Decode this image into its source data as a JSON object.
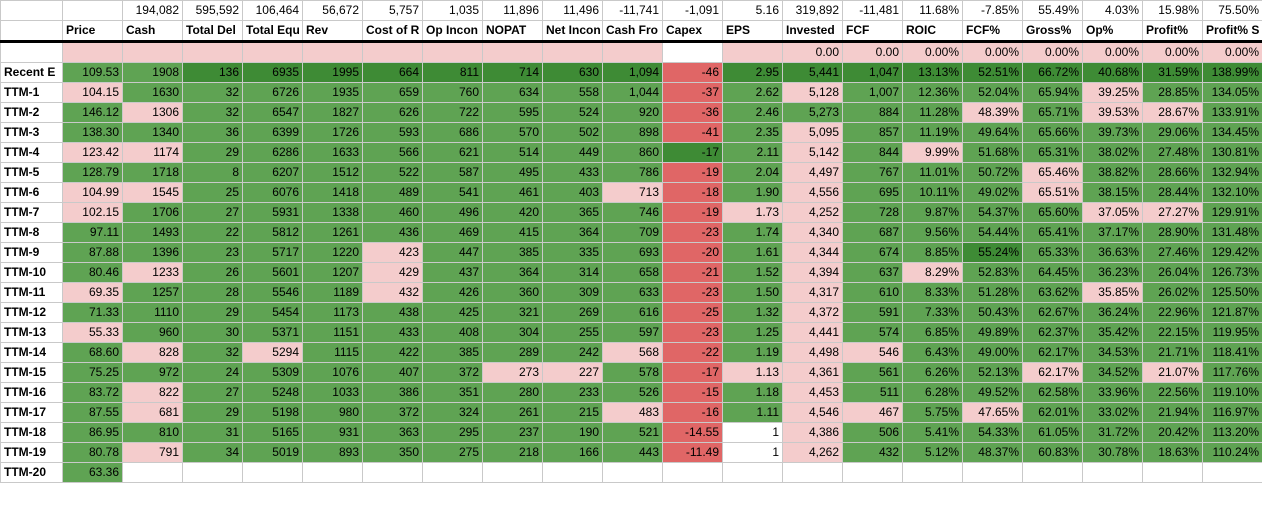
{
  "top_row": [
    "",
    "",
    "194,082",
    "595,592",
    "106,464",
    "56,672",
    "5,757",
    "1,035",
    "11,896",
    "11,496",
    "-11,741",
    "-1,091",
    "5.16",
    "319,892",
    "-11,481",
    "11.68%",
    "-7.85%",
    "55.49%",
    "4.03%",
    "15.98%",
    "75.50%"
  ],
  "headers": [
    "",
    "Price",
    "Cash",
    "Total Del",
    "Total Equ",
    "Rev",
    "Cost of R",
    "Op Incon",
    "NOPAT",
    "Net Incon",
    "Cash Fro",
    "Capex",
    "EPS",
    "Invested",
    "FCF",
    "ROIC",
    "FCF%",
    "Gross%",
    "Op%",
    "Profit%",
    "Profit% S"
  ],
  "pink_row": [
    "",
    "",
    "",
    "",
    "",
    "",
    "",
    "",
    "",
    "",
    "",
    "",
    "",
    "0.00",
    "0.00",
    "0.00%",
    "0.00%",
    "0.00%",
    "0.00%",
    "0.00%",
    "0.00%"
  ],
  "rows": [
    {
      "label": "Recent E",
      "cells": [
        "109.53",
        "1908",
        "136",
        "6935",
        "1995",
        "664",
        "811",
        "714",
        "630",
        "1,094",
        "-46",
        "2.95",
        "5,441",
        "1,047",
        "13.13%",
        "52.51%",
        "66.72%",
        "40.68%",
        "31.59%",
        "138.99%"
      ]
    },
    {
      "label": "TTM-1",
      "cells": [
        "104.15",
        "1630",
        "32",
        "6726",
        "1935",
        "659",
        "760",
        "634",
        "558",
        "1,044",
        "-37",
        "2.62",
        "5,128",
        "1,007",
        "12.36%",
        "52.04%",
        "65.94%",
        "39.25%",
        "28.85%",
        "134.05%"
      ]
    },
    {
      "label": "TTM-2",
      "cells": [
        "146.12",
        "1306",
        "32",
        "6547",
        "1827",
        "626",
        "722",
        "595",
        "524",
        "920",
        "-36",
        "2.46",
        "5,273",
        "884",
        "11.28%",
        "48.39%",
        "65.71%",
        "39.53%",
        "28.67%",
        "133.91%"
      ]
    },
    {
      "label": "TTM-3",
      "cells": [
        "138.30",
        "1340",
        "36",
        "6399",
        "1726",
        "593",
        "686",
        "570",
        "502",
        "898",
        "-41",
        "2.35",
        "5,095",
        "857",
        "11.19%",
        "49.64%",
        "65.66%",
        "39.73%",
        "29.06%",
        "134.45%"
      ]
    },
    {
      "label": "TTM-4",
      "cells": [
        "123.42",
        "1174",
        "29",
        "6286",
        "1633",
        "566",
        "621",
        "514",
        "449",
        "860",
        "-17",
        "2.11",
        "5,142",
        "844",
        "9.99%",
        "51.68%",
        "65.31%",
        "38.02%",
        "27.48%",
        "130.81%"
      ]
    },
    {
      "label": "TTM-5",
      "cells": [
        "128.79",
        "1718",
        "8",
        "6207",
        "1512",
        "522",
        "587",
        "495",
        "433",
        "786",
        "-19",
        "2.04",
        "4,497",
        "767",
        "11.01%",
        "50.72%",
        "65.46%",
        "38.82%",
        "28.66%",
        "132.94%"
      ]
    },
    {
      "label": "TTM-6",
      "cells": [
        "104.99",
        "1545",
        "25",
        "6076",
        "1418",
        "489",
        "541",
        "461",
        "403",
        "713",
        "-18",
        "1.90",
        "4,556",
        "695",
        "10.11%",
        "49.02%",
        "65.51%",
        "38.15%",
        "28.44%",
        "132.10%"
      ]
    },
    {
      "label": "TTM-7",
      "cells": [
        "102.15",
        "1706",
        "27",
        "5931",
        "1338",
        "460",
        "496",
        "420",
        "365",
        "746",
        "-19",
        "1.73",
        "4,252",
        "728",
        "9.87%",
        "54.37%",
        "65.60%",
        "37.05%",
        "27.27%",
        "129.91%"
      ]
    },
    {
      "label": "TTM-8",
      "cells": [
        "97.11",
        "1493",
        "22",
        "5812",
        "1261",
        "436",
        "469",
        "415",
        "364",
        "709",
        "-23",
        "1.74",
        "4,340",
        "687",
        "9.56%",
        "54.44%",
        "65.41%",
        "37.17%",
        "28.90%",
        "131.48%"
      ]
    },
    {
      "label": "TTM-9",
      "cells": [
        "87.88",
        "1396",
        "23",
        "5717",
        "1220",
        "423",
        "447",
        "385",
        "335",
        "693",
        "-20",
        "1.61",
        "4,344",
        "674",
        "8.85%",
        "55.24%",
        "65.33%",
        "36.63%",
        "27.46%",
        "129.42%"
      ]
    },
    {
      "label": "TTM-10",
      "cells": [
        "80.46",
        "1233",
        "26",
        "5601",
        "1207",
        "429",
        "437",
        "364",
        "314",
        "658",
        "-21",
        "1.52",
        "4,394",
        "637",
        "8.29%",
        "52.83%",
        "64.45%",
        "36.23%",
        "26.04%",
        "126.73%"
      ]
    },
    {
      "label": "TTM-11",
      "cells": [
        "69.35",
        "1257",
        "28",
        "5546",
        "1189",
        "432",
        "426",
        "360",
        "309",
        "633",
        "-23",
        "1.50",
        "4,317",
        "610",
        "8.33%",
        "51.28%",
        "63.62%",
        "35.85%",
        "26.02%",
        "125.50%"
      ]
    },
    {
      "label": "TTM-12",
      "cells": [
        "71.33",
        "1110",
        "29",
        "5454",
        "1173",
        "438",
        "425",
        "321",
        "269",
        "616",
        "-25",
        "1.32",
        "4,372",
        "591",
        "7.33%",
        "50.43%",
        "62.67%",
        "36.24%",
        "22.96%",
        "121.87%"
      ]
    },
    {
      "label": "TTM-13",
      "cells": [
        "55.33",
        "960",
        "30",
        "5371",
        "1151",
        "433",
        "408",
        "304",
        "255",
        "597",
        "-23",
        "1.25",
        "4,441",
        "574",
        "6.85%",
        "49.89%",
        "62.37%",
        "35.42%",
        "22.15%",
        "119.95%"
      ]
    },
    {
      "label": "TTM-14",
      "cells": [
        "68.60",
        "828",
        "32",
        "5294",
        "1115",
        "422",
        "385",
        "289",
        "242",
        "568",
        "-22",
        "1.19",
        "4,498",
        "546",
        "6.43%",
        "49.00%",
        "62.17%",
        "34.53%",
        "21.71%",
        "118.41%"
      ]
    },
    {
      "label": "TTM-15",
      "cells": [
        "75.25",
        "972",
        "24",
        "5309",
        "1076",
        "407",
        "372",
        "273",
        "227",
        "578",
        "-17",
        "1.13",
        "4,361",
        "561",
        "6.26%",
        "52.13%",
        "62.17%",
        "34.52%",
        "21.07%",
        "117.76%"
      ]
    },
    {
      "label": "TTM-16",
      "cells": [
        "83.72",
        "822",
        "27",
        "5248",
        "1033",
        "386",
        "351",
        "280",
        "233",
        "526",
        "-15",
        "1.18",
        "4,453",
        "511",
        "6.28%",
        "49.52%",
        "62.58%",
        "33.96%",
        "22.56%",
        "119.10%"
      ]
    },
    {
      "label": "TTM-17",
      "cells": [
        "87.55",
        "681",
        "29",
        "5198",
        "980",
        "372",
        "324",
        "261",
        "215",
        "483",
        "-16",
        "1.11",
        "4,546",
        "467",
        "5.75%",
        "47.65%",
        "62.01%",
        "33.02%",
        "21.94%",
        "116.97%"
      ]
    },
    {
      "label": "TTM-18",
      "cells": [
        "86.95",
        "810",
        "31",
        "5165",
        "931",
        "363",
        "295",
        "237",
        "190",
        "521",
        "-14.55",
        "1",
        "4,386",
        "506",
        "5.41%",
        "54.33%",
        "61.05%",
        "31.72%",
        "20.42%",
        "113.20%"
      ]
    },
    {
      "label": "TTM-19",
      "cells": [
        "80.78",
        "791",
        "34",
        "5019",
        "893",
        "350",
        "275",
        "218",
        "166",
        "443",
        "-11.49",
        "1",
        "4,262",
        "432",
        "5.12%",
        "48.37%",
        "60.83%",
        "30.78%",
        "18.63%",
        "110.24%"
      ]
    },
    {
      "label": "TTM-20",
      "cells": [
        "63.36",
        "",
        "",
        "",
        "",
        "",
        "",
        "",
        "",
        "",
        "",
        "",
        "",
        "",
        "",
        "",
        "",
        "",
        "",
        ""
      ]
    }
  ],
  "colors": {
    "green": "#5fa353",
    "dark_green": "#3e8b35",
    "light_green": "#86bb70",
    "pink": "#f4cccc",
    "red": "#e06666"
  }
}
